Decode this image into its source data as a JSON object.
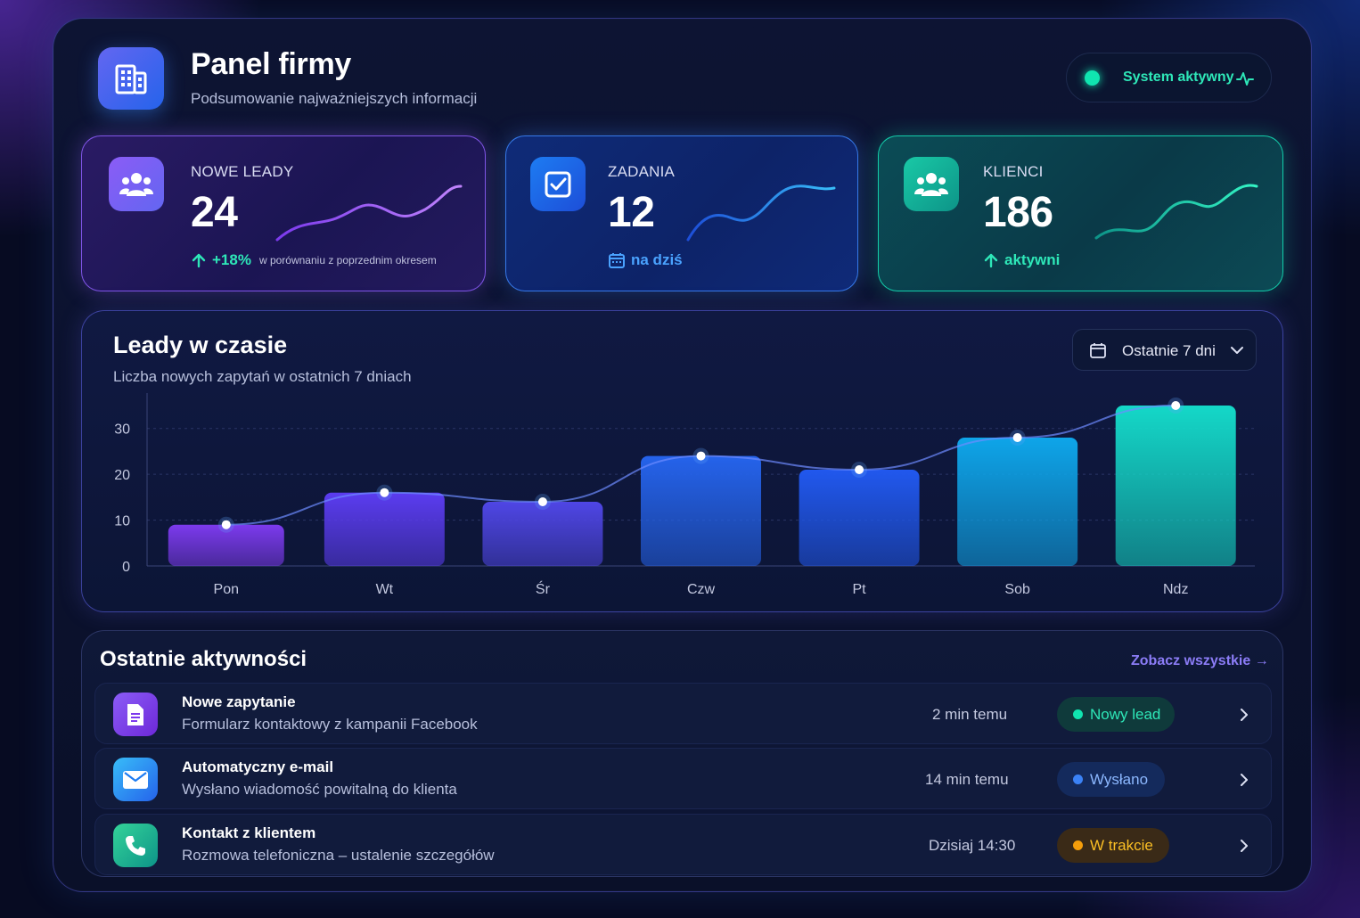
{
  "header": {
    "title": "Panel firmy",
    "subtitle": "Podsumowanie najważniejszych informacji",
    "logo_icon": "building-icon",
    "status_label": "System aktywny",
    "status_color": "#10e5b0"
  },
  "stats": [
    {
      "label": "NOWE LEADY",
      "value": "24",
      "trend": "+18%",
      "note": "w porównaniu z poprzednim okresem",
      "icon": "users-icon",
      "accent": "#8b5cf6"
    },
    {
      "label": "ZADANIA",
      "value": "12",
      "trend": "na dziś",
      "icon": "checkbox-icon",
      "accent": "#1d7cf2"
    },
    {
      "label": "KLIENCI",
      "value": "186",
      "trend": "aktywni",
      "icon": "users-icon",
      "accent": "#19c9a6"
    }
  ],
  "chart": {
    "title": "Leady w czasie",
    "subtitle": "Liczba nowych zapytań w ostatnich 7 dniach",
    "range_label": "Ostatnie 7 dni"
  },
  "chart_data": {
    "type": "bar",
    "categories": [
      "Pon",
      "Wt",
      "Śr",
      "Czw",
      "Pt",
      "Sob",
      "Ndz"
    ],
    "values": [
      9,
      16,
      14,
      24,
      21,
      28,
      35
    ],
    "ylim": [
      0,
      35
    ],
    "yticks": [
      0,
      10,
      20,
      30
    ],
    "overlay": "line",
    "grid": true,
    "colors": [
      "#7c3aed",
      "#5b3cf0",
      "#4f46e5",
      "#2563eb",
      "#2158ee",
      "#0ea5e9",
      "#14d8c8"
    ]
  },
  "activities": {
    "title": "Ostatnie aktywności",
    "see_all": "Zobacz wszystkie →",
    "items": [
      {
        "title": "Nowe zapytanie",
        "desc": "Formularz kontaktowy z kampanii Facebook",
        "time": "2 min temu",
        "badge": "Nowy lead",
        "badge_color": "#10e5b0",
        "icon": "document-icon"
      },
      {
        "title": "Automatyczny e-mail",
        "desc": "Wysłano wiadomość powitalną do klienta",
        "time": "14 min temu",
        "badge": "Wysłano",
        "badge_color": "#3b82f6",
        "icon": "mail-icon"
      },
      {
        "title": "Kontakt z klientem",
        "desc": "Rozmowa telefoniczna – ustalenie szczegółów",
        "time": "Dzisiaj 14:30",
        "badge": "W trakcie",
        "badge_color": "#f59e0b",
        "icon": "phone-icon"
      }
    ]
  }
}
